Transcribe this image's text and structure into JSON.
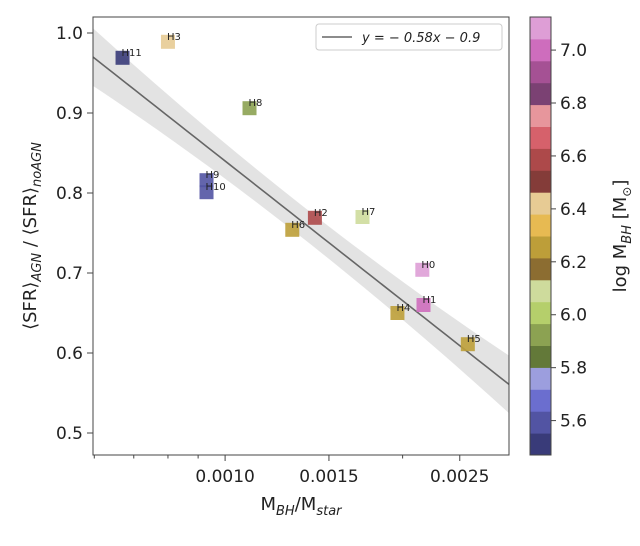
{
  "chart_data": {
    "type": "scatter",
    "xlabel": "M_BH/M_star",
    "ylabel": "⟨SFR⟩_AGN / ⟨SFR⟩_noAGN",
    "xscale": "log",
    "xlim": [
      0.000597,
      0.00303
    ],
    "ylim": [
      0.4725,
      1.02
    ],
    "xticks": [
      {
        "value": 0.001,
        "label": "0.0010"
      },
      {
        "value": 0.0015,
        "label": "0.0015"
      },
      {
        "value": 0.0025,
        "label": "0.0025"
      }
    ],
    "xminorticks": [
      0.0006,
      0.0007,
      0.0008,
      0.0009,
      0.002
    ],
    "yticks": [
      {
        "value": 0.5,
        "label": "0.5"
      },
      {
        "value": 0.6,
        "label": "0.6"
      },
      {
        "value": 0.7,
        "label": "0.7"
      },
      {
        "value": 0.8,
        "label": "0.8"
      },
      {
        "value": 0.9,
        "label": "0.9"
      },
      {
        "value": 1.0,
        "label": "1.0"
      }
    ],
    "grid": false,
    "points": [
      {
        "label": "H0",
        "x": 0.00216,
        "y": 0.704,
        "logMBH": 7.1
      },
      {
        "label": "H1",
        "x": 0.00217,
        "y": 0.66,
        "logMBH": 7.0
      },
      {
        "label": "H2",
        "x": 0.00142,
        "y": 0.769,
        "logMBH": 6.6
      },
      {
        "label": "H3",
        "x": 0.0008,
        "y": 0.989,
        "logMBH": 6.42
      },
      {
        "label": "H4",
        "x": 0.00196,
        "y": 0.65,
        "logMBH": 6.25
      },
      {
        "label": "H5",
        "x": 0.00258,
        "y": 0.611,
        "logMBH": 6.25
      },
      {
        "label": "H6",
        "x": 0.0013,
        "y": 0.754,
        "logMBH": 6.25
      },
      {
        "label": "H7",
        "x": 0.00171,
        "y": 0.77,
        "logMBH": 6.1
      },
      {
        "label": "H8",
        "x": 0.0011,
        "y": 0.906,
        "logMBH": 5.93
      },
      {
        "label": "H9",
        "x": 0.00093,
        "y": 0.816,
        "logMBH": 5.58
      },
      {
        "label": "H10",
        "x": 0.00093,
        "y": 0.801,
        "logMBH": 5.58
      },
      {
        "label": "H11",
        "x": 0.00067,
        "y": 0.969,
        "logMBH": 5.5
      }
    ],
    "fit": {
      "slope": -0.58,
      "intercept": -0.9,
      "x_transform": "log10",
      "band_halfwidth": 0.02,
      "color": "#666666",
      "band_color": "#d9d9d9"
    },
    "legend": {
      "label": "y = − 0.58x − 0.9",
      "placement": "top-right"
    },
    "colorbar": {
      "label": "log M_BH [M_⊙]",
      "colormap": "tab20b",
      "range": [
        5.47,
        7.125
      ],
      "ticks": [
        {
          "value": 5.6,
          "label": "5.6"
        },
        {
          "value": 5.8,
          "label": "5.8"
        },
        {
          "value": 6.0,
          "label": "6.0"
        },
        {
          "value": 6.2,
          "label": "6.2"
        },
        {
          "value": 6.4,
          "label": "6.4"
        },
        {
          "value": 6.6,
          "label": "6.6"
        },
        {
          "value": 6.8,
          "label": "6.8"
        },
        {
          "value": 7.0,
          "label": "7.0"
        }
      ],
      "colors": [
        "#393b79",
        "#5254a3",
        "#6b6ecf",
        "#9c9ede",
        "#637939",
        "#8ca252",
        "#b5cf6b",
        "#cedb9c",
        "#8c6d31",
        "#bd9e39",
        "#e7ba52",
        "#e7cb94",
        "#843c39",
        "#ad494a",
        "#d6616b",
        "#e7969c",
        "#7b4173",
        "#a55194",
        "#ce6dbd",
        "#de9ed6"
      ]
    }
  }
}
